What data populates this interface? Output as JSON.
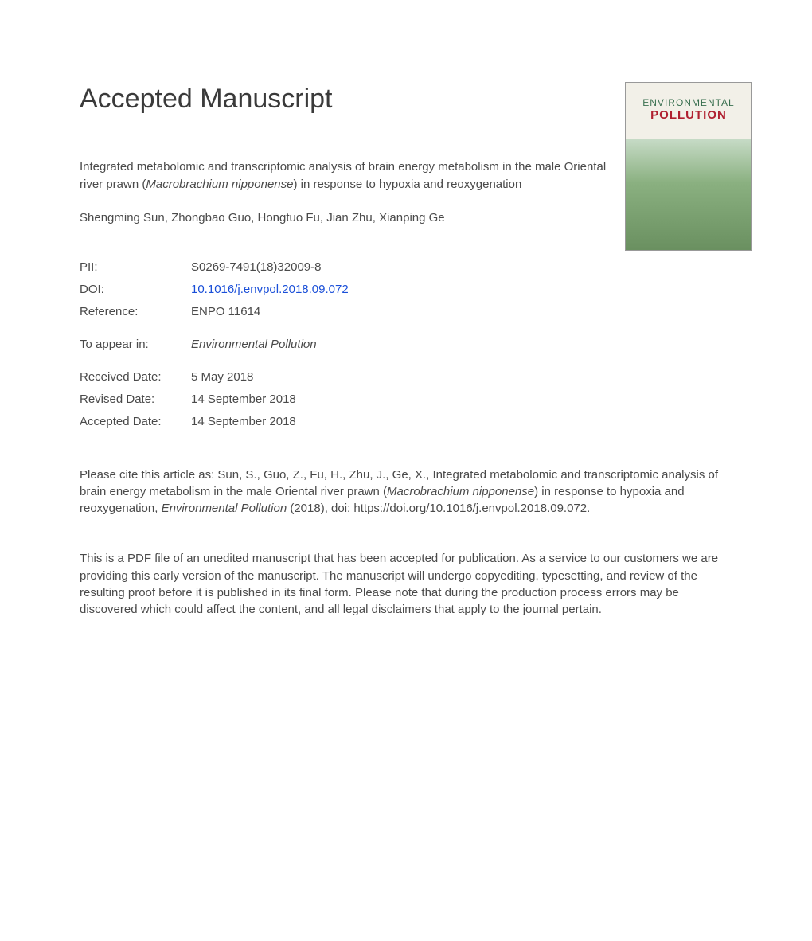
{
  "heading": "Accepted Manuscript",
  "cover": {
    "line1": "ENVIRONMENTAL",
    "line2": "POLLUTION"
  },
  "title_pre": "Integrated metabolomic and transcriptomic analysis of brain energy metabolism in the male Oriental river prawn (",
  "title_species": "Macrobrachium nipponense",
  "title_post": ") in response to hypoxia and reoxygenation",
  "authors": "Shengming Sun, Zhongbao Guo, Hongtuo Fu, Jian Zhu, Xianping Ge",
  "meta": {
    "pii_label": "PII:",
    "pii_value": "S0269-7491(18)32009-8",
    "doi_label": "DOI:",
    "doi_value": "10.1016/j.envpol.2018.09.072",
    "ref_label": "Reference:",
    "ref_value": "ENPO 11614",
    "appear_label": "To appear in:",
    "appear_value": "Environmental Pollution",
    "received_label": "Received Date:",
    "received_value": "5 May 2018",
    "revised_label": "Revised Date:",
    "revised_value": "14 September 2018",
    "accepted_label": "Accepted Date:",
    "accepted_value": "14 September 2018"
  },
  "citation_pre": "Please cite this article as: Sun, S., Guo, Z., Fu, H., Zhu, J., Ge, X., Integrated metabolomic and transcriptomic analysis of brain energy metabolism in the male Oriental river prawn (",
  "citation_species": "Macrobrachium nipponense",
  "citation_mid": ") in response to hypoxia and reoxygenation, ",
  "citation_journal": "Environmental Pollution",
  "citation_post": " (2018), doi: https://doi.org/10.1016/j.envpol.2018.09.072.",
  "disclaimer": "This is a PDF file of an unedited manuscript that has been accepted for publication. As a service to our customers we are providing this early version of the manuscript. The manuscript will undergo copyediting, typesetting, and review of the resulting proof before it is published in its final form. Please note that during the production process errors may be discovered which could affect the content, and all legal disclaimers that apply to the journal pertain."
}
